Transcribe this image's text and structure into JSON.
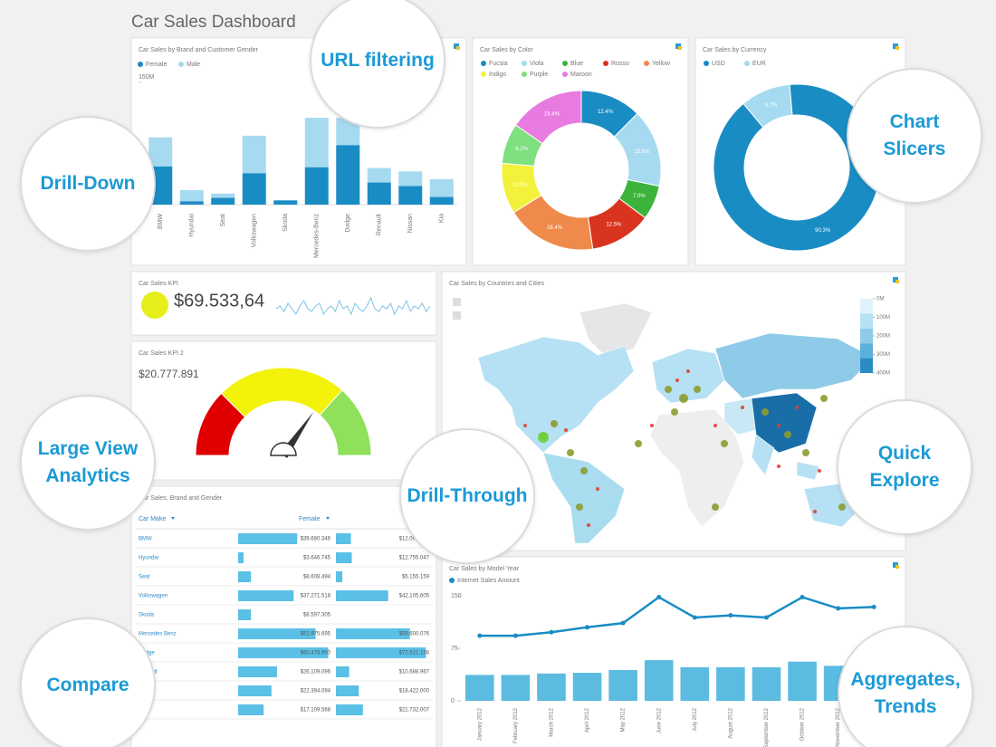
{
  "header": {
    "title": "Car Sales Dashboard"
  },
  "callouts": [
    "URL filtering",
    "Chart Slicers",
    "Drill-Down",
    "Large View Analytics",
    "Drill-Through",
    "Quick Explore",
    "Compare",
    "Aggregates, Trends"
  ],
  "chart_data": [
    {
      "type": "bar",
      "stacked": true,
      "title": "Car Sales by Brand and Customer Gender",
      "categories": [
        "BMW",
        "Hyundai",
        "Seat",
        "Volkswagen",
        "Skoda",
        "Mercedes-Benz",
        "Dodge",
        "Renault",
        "Nissan",
        "Kia"
      ],
      "series": [
        {
          "name": "Female",
          "color": "#1a8cc4",
          "values": [
            45,
            4,
            8,
            37,
            5,
            44,
            70,
            26,
            22,
            9
          ]
        },
        {
          "name": "Male",
          "color": "#a6daf0",
          "values": [
            34,
            13,
            5,
            44,
            0,
            58,
            32,
            17,
            17,
            21
          ]
        }
      ],
      "ylim": [
        0,
        150
      ],
      "yticks": [
        {
          "value": 150,
          "label": "150M"
        }
      ]
    },
    {
      "type": "pie",
      "donut": true,
      "title": "Car Sales by Color",
      "categories": [
        "Fucsia",
        "Viola",
        "Blue",
        "Rosso",
        "Yellow",
        "Indigo",
        "Purple",
        "Maroon"
      ],
      "colors": [
        "#1a8cc4",
        "#a6daf0",
        "#3cb43c",
        "#d9341f",
        "#f08a4b",
        "#f2f23a",
        "#7ee07e",
        "#e77be0"
      ],
      "values": [
        12.4,
        15.8,
        7.0,
        12.5,
        18.4,
        10.3,
        8.2,
        15.4
      ],
      "value_labels": [
        "12.4%",
        "15.8%",
        "7.0%",
        "12.5%",
        "18.4%",
        "10.3%",
        "8.2%",
        "15.4%"
      ]
    },
    {
      "type": "pie",
      "donut": true,
      "title": "Car Sales by Currency",
      "categories": [
        "USD",
        "EUR"
      ],
      "colors": [
        "#1a8cc4",
        "#a6daf0"
      ],
      "values": [
        90.3,
        9.7
      ],
      "value_labels": [
        "90.3%",
        "9.7%"
      ]
    },
    {
      "type": "kpi",
      "title": "Car Sales KPI",
      "value_label": "$69.533,64",
      "color": "#e6ef1a",
      "line_color": "#7cc3e6",
      "ylim": [
        0,
        10
      ],
      "values": [
        5,
        6,
        4,
        7,
        5,
        3,
        6,
        8,
        5,
        4,
        6,
        7,
        3,
        5,
        6,
        4,
        8,
        5,
        6,
        3,
        7,
        5,
        4,
        6,
        9,
        5,
        4,
        6,
        5,
        7,
        3,
        6,
        5,
        8,
        4,
        6,
        5,
        7,
        4,
        6
      ]
    },
    {
      "type": "gauge",
      "title": "Car Sales KPI 2",
      "value_label": "$20.777.891",
      "value": 20.78,
      "ylim": [
        0,
        30
      ],
      "bands": [
        {
          "to": 7.5,
          "color": "#e00000"
        },
        {
          "to": 22,
          "color": "#f2f20a"
        },
        {
          "to": 30,
          "color": "#8fe05a"
        }
      ]
    },
    {
      "type": "map",
      "title": "Car Sales by Countries and Cities",
      "colorbar": {
        "lim": [
          0,
          400
        ],
        "colors": [
          "#dff2fb",
          "#b6e0f3",
          "#8fcbe8",
          "#5bb1dc",
          "#2b8cc4"
        ],
        "ticks": [
          {
            "value": 0,
            "label": "0M"
          },
          {
            "value": 100,
            "label": "100M"
          },
          {
            "value": 200,
            "label": "200M"
          },
          {
            "value": 300,
            "label": "300M"
          },
          {
            "value": 400,
            "label": "400M"
          }
        ]
      }
    },
    {
      "type": "table-bars",
      "title": "Car Sales, Brand and Gender",
      "columns": [
        "Car Make",
        "Female"
      ],
      "categories": [
        "BMW",
        "Hyundai",
        "Seat",
        "Volkswagen",
        "Skoda",
        "Mercedes Benz",
        "Dodge",
        "Renault",
        "Nissan",
        "Kia"
      ],
      "series": [
        {
          "name": "Female",
          "color": "#5bc0e6",
          "xlim": [
            0,
            62000000
          ],
          "values": [
            39680346,
            3646745,
            8608494,
            37271518,
            8597305,
            51975695,
            60478950,
            26109096,
            22394094,
            17109568
          ],
          "value_labels": [
            "$39.680.346",
            "$3.646.745",
            "$8.608.494",
            "$37.271.518",
            "$8.597.305",
            "$51.975.695",
            "$60.478.950",
            "$26.109.096",
            "$22.394.094",
            "$17.109.568"
          ]
        },
        {
          "color": "#5bc0e6",
          "xlim": [
            0,
            73000000
          ],
          "values": [
            12098333,
            12755047,
            5155159,
            42105605,
            null,
            59600076,
            72521158,
            10688967,
            18422000,
            21732007
          ],
          "value_labels": [
            "$12.098.333",
            "$12.755.047",
            "$5.155.159",
            "$42.105.605",
            null,
            "$59.600.076",
            "$72.521.158",
            "$10.688.967",
            "$18.422.000",
            "$21.732.007"
          ]
        }
      ]
    },
    {
      "type": "bar-line",
      "title": "Car Sales by Model Year",
      "categories": [
        "January 2012",
        "February 2012",
        "March 2012",
        "April 2012",
        "May 2012",
        "June 2012",
        "July 2012",
        "August 2012",
        "September 2012",
        "October 2012",
        "November 2012",
        "December 2012"
      ],
      "series": [
        {
          "name": "Internet Sales Amount",
          "color": "#1a8cc4",
          "values": [
            93,
            93,
            98,
            105,
            111,
            148,
            119,
            122,
            119,
            148,
            132,
            134
          ]
        },
        {
          "color": "#5bbbe0",
          "bars": true,
          "values": [
            37,
            37,
            39,
            40,
            44,
            58,
            48,
            48,
            48,
            56,
            50,
            35
          ]
        }
      ],
      "ylim": [
        0,
        150
      ],
      "yticks": [
        0,
        75,
        150
      ]
    }
  ]
}
